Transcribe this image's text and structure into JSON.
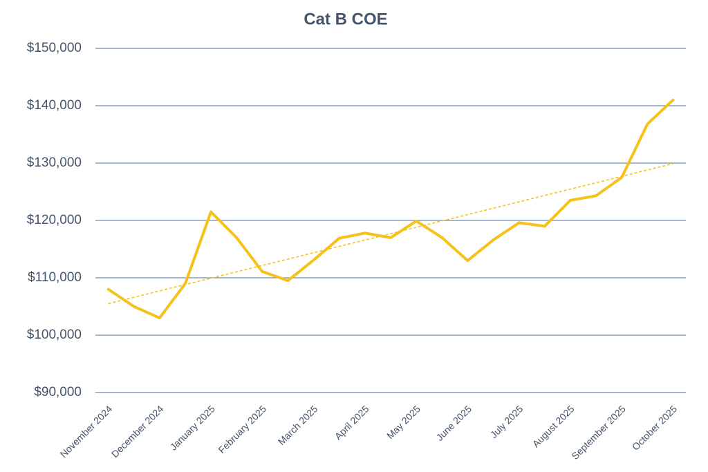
{
  "chart_data": {
    "type": "line",
    "title": "Cat B COE",
    "categories": [
      "November 2024",
      null,
      "December 2024",
      null,
      "January 2025",
      null,
      "February 2025",
      null,
      "March 2025",
      null,
      "April 2025",
      null,
      "May 2025",
      null,
      "June 2025",
      null,
      "July 2025",
      null,
      "August 2025",
      null,
      "September 2025",
      null,
      "October 2025"
    ],
    "series": [
      {
        "name": "Cat B COE",
        "color": "#f5c21b",
        "values": [
          108000,
          105000,
          103000,
          109000,
          121500,
          117000,
          111100,
          109500,
          113100,
          116900,
          117800,
          117000,
          119900,
          117000,
          113000,
          116600,
          119600,
          119000,
          123500,
          124300,
          127500,
          136800,
          141000
        ]
      }
    ],
    "trendline": "linear",
    "ylim": [
      90000,
      150000
    ],
    "yticks": [
      {
        "value": 90000,
        "label": "$90,000"
      },
      {
        "value": 100000,
        "label": "$100,000"
      },
      {
        "value": 110000,
        "label": "$110,000"
      },
      {
        "value": 120000,
        "label": "$120,000"
      },
      {
        "value": 130000,
        "label": "$130,000"
      },
      {
        "value": 140000,
        "label": "$140,000"
      },
      {
        "value": 150000,
        "label": "$150,000"
      }
    ],
    "grid": true
  }
}
